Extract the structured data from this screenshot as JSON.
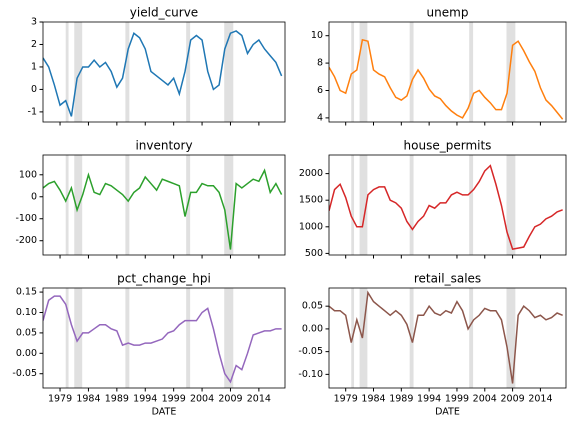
{
  "chart_data": [
    {
      "type": "line",
      "title": "yield_curve",
      "color": "#1f77b4",
      "x": [
        1976,
        1977,
        1978,
        1979,
        1980,
        1981,
        1982,
        1983,
        1984,
        1985,
        1986,
        1987,
        1988,
        1989,
        1990,
        1991,
        1992,
        1993,
        1994,
        1995,
        1996,
        1997,
        1998,
        1999,
        2000,
        2001,
        2002,
        2003,
        2004,
        2005,
        2006,
        2007,
        2008,
        2009,
        2010,
        2011,
        2012,
        2013,
        2014,
        2015,
        2016,
        2017,
        2018
      ],
      "values": [
        1.4,
        1.0,
        0.2,
        -0.7,
        -0.5,
        -1.2,
        0.5,
        1.0,
        1.0,
        1.3,
        1.0,
        1.2,
        0.8,
        0.1,
        0.5,
        1.8,
        2.5,
        2.3,
        1.8,
        0.8,
        0.6,
        0.4,
        0.2,
        0.5,
        -0.2,
        0.8,
        2.2,
        2.4,
        2.2,
        0.8,
        0.0,
        0.2,
        1.8,
        2.5,
        2.6,
        2.4,
        1.6,
        2.0,
        2.2,
        1.8,
        1.5,
        1.2,
        0.6
      ],
      "xlim": [
        1976,
        2018.6
      ],
      "ylim": [
        -1.45,
        3
      ],
      "yticks": [
        -1,
        0,
        1,
        2,
        3
      ],
      "shaded_regions": [
        [
          1980.0,
          1980.5
        ],
        [
          1981.5,
          1982.9
        ],
        [
          1990.5,
          1991.2
        ],
        [
          2001.2,
          2001.9
        ],
        [
          2007.9,
          2009.5
        ]
      ]
    },
    {
      "type": "line",
      "title": "unemp",
      "color": "#ff7f0e",
      "x": [
        1976,
        1977,
        1978,
        1979,
        1980,
        1981,
        1982,
        1983,
        1984,
        1985,
        1986,
        1987,
        1988,
        1989,
        1990,
        1991,
        1992,
        1993,
        1994,
        1995,
        1996,
        1997,
        1998,
        1999,
        2000,
        2001,
        2002,
        2003,
        2004,
        2005,
        2006,
        2007,
        2008,
        2009,
        2010,
        2011,
        2012,
        2013,
        2014,
        2015,
        2016,
        2017,
        2018
      ],
      "values": [
        7.7,
        7.0,
        6.0,
        5.8,
        7.2,
        7.5,
        9.7,
        9.6,
        7.5,
        7.2,
        7.0,
        6.2,
        5.5,
        5.3,
        5.6,
        6.8,
        7.5,
        6.9,
        6.1,
        5.6,
        5.4,
        4.9,
        4.5,
        4.2,
        4.0,
        4.7,
        5.8,
        6.0,
        5.5,
        5.1,
        4.6,
        4.6,
        5.8,
        9.3,
        9.6,
        8.9,
        8.1,
        7.4,
        6.2,
        5.3,
        4.9,
        4.4,
        3.9
      ],
      "xlim": [
        1976,
        2018.6
      ],
      "ylim": [
        3.7,
        11
      ],
      "yticks": [
        4,
        6,
        8,
        10
      ],
      "shaded_regions": [
        [
          1980.0,
          1980.5
        ],
        [
          1981.5,
          1982.9
        ],
        [
          1990.5,
          1991.2
        ],
        [
          2001.2,
          2001.9
        ],
        [
          2007.9,
          2009.5
        ]
      ]
    },
    {
      "type": "line",
      "title": "inventory",
      "color": "#2ca02c",
      "x": [
        1976,
        1977,
        1978,
        1979,
        1980,
        1981,
        1982,
        1983,
        1984,
        1985,
        1986,
        1987,
        1988,
        1989,
        1990,
        1991,
        1992,
        1993,
        1994,
        1995,
        1996,
        1997,
        1998,
        1999,
        2000,
        2001,
        2002,
        2003,
        2004,
        2005,
        2006,
        2007,
        2008,
        2009,
        2010,
        2011,
        2012,
        2013,
        2014,
        2015,
        2016,
        2017,
        2018
      ],
      "values": [
        40,
        60,
        70,
        30,
        -20,
        40,
        -60,
        10,
        100,
        20,
        10,
        60,
        50,
        30,
        10,
        -20,
        20,
        40,
        90,
        60,
        30,
        80,
        70,
        60,
        50,
        -90,
        20,
        20,
        60,
        50,
        50,
        20,
        -60,
        -240,
        60,
        40,
        60,
        80,
        70,
        120,
        20,
        60,
        10
      ],
      "xlim": [
        1976,
        2018.6
      ],
      "ylim": [
        -265,
        190
      ],
      "yticks": [
        -200,
        -100,
        0,
        100
      ],
      "shaded_regions": [
        [
          1980.0,
          1980.5
        ],
        [
          1981.5,
          1982.9
        ],
        [
          1990.5,
          1991.2
        ],
        [
          2001.2,
          2001.9
        ],
        [
          2007.9,
          2009.5
        ]
      ]
    },
    {
      "type": "line",
      "title": "house_permits",
      "color": "#d62728",
      "x": [
        1976,
        1977,
        1978,
        1979,
        1980,
        1981,
        1982,
        1983,
        1984,
        1985,
        1986,
        1987,
        1988,
        1989,
        1990,
        1991,
        1992,
        1993,
        1994,
        1995,
        1996,
        1997,
        1998,
        1999,
        2000,
        2001,
        2002,
        2003,
        2004,
        2005,
        2006,
        2007,
        2008,
        2009,
        2010,
        2011,
        2012,
        2013,
        2014,
        2015,
        2016,
        2017,
        2018
      ],
      "values": [
        1300,
        1700,
        1800,
        1550,
        1200,
        1000,
        1000,
        1600,
        1700,
        1750,
        1750,
        1500,
        1450,
        1350,
        1100,
        950,
        1100,
        1200,
        1400,
        1350,
        1450,
        1450,
        1600,
        1650,
        1600,
        1600,
        1700,
        1850,
        2050,
        2150,
        1800,
        1400,
        900,
        580,
        600,
        620,
        820,
        1000,
        1050,
        1150,
        1200,
        1280,
        1320
      ],
      "xlim": [
        1976,
        2018.6
      ],
      "ylim": [
        470,
        2350
      ],
      "yticks": [
        500,
        1000,
        1500,
        2000
      ],
      "shaded_regions": [
        [
          1980.0,
          1980.5
        ],
        [
          1981.5,
          1982.9
        ],
        [
          1990.5,
          1991.2
        ],
        [
          2001.2,
          2001.9
        ],
        [
          2007.9,
          2009.5
        ]
      ]
    },
    {
      "type": "line",
      "title": "pct_change_hpi",
      "color": "#9467bd",
      "x": [
        1976,
        1977,
        1978,
        1979,
        1980,
        1981,
        1982,
        1983,
        1984,
        1985,
        1986,
        1987,
        1988,
        1989,
        1990,
        1991,
        1992,
        1993,
        1994,
        1995,
        1996,
        1997,
        1998,
        1999,
        2000,
        2001,
        2002,
        2003,
        2004,
        2005,
        2006,
        2007,
        2008,
        2009,
        2010,
        2011,
        2012,
        2013,
        2014,
        2015,
        2016,
        2017,
        2018
      ],
      "values": [
        0.08,
        0.13,
        0.14,
        0.14,
        0.12,
        0.07,
        0.03,
        0.05,
        0.05,
        0.06,
        0.07,
        0.07,
        0.06,
        0.055,
        0.02,
        0.025,
        0.02,
        0.02,
        0.025,
        0.025,
        0.03,
        0.035,
        0.05,
        0.055,
        0.07,
        0.08,
        0.08,
        0.08,
        0.1,
        0.11,
        0.06,
        0.0,
        -0.05,
        -0.07,
        -0.03,
        -0.04,
        0.0,
        0.045,
        0.05,
        0.055,
        0.055,
        0.06,
        0.06
      ],
      "xlim": [
        1976,
        2018.6
      ],
      "ylim": [
        -0.085,
        0.16
      ],
      "yticks": [
        -0.05,
        {
          "value": 0,
          "label": "0.00"
        },
        0.05,
        {
          "value": 0.1,
          "label": "0.10"
        },
        0.15
      ],
      "xticks": [
        1979,
        1984,
        1989,
        1994,
        1999,
        2004,
        2009,
        2014
      ],
      "xlabel": "DATE",
      "shaded_regions": [
        [
          1980.0,
          1980.5
        ],
        [
          1981.5,
          1982.9
        ],
        [
          1990.5,
          1991.2
        ],
        [
          2001.2,
          2001.9
        ],
        [
          2007.9,
          2009.5
        ]
      ]
    },
    {
      "type": "line",
      "title": "retail_sales",
      "color": "#8c564b",
      "x": [
        1976,
        1977,
        1978,
        1979,
        1980,
        1981,
        1982,
        1983,
        1984,
        1985,
        1986,
        1987,
        1988,
        1989,
        1990,
        1991,
        1992,
        1993,
        1994,
        1995,
        1996,
        1997,
        1998,
        1999,
        2000,
        2001,
        2002,
        2003,
        2004,
        2005,
        2006,
        2007,
        2008,
        2009,
        2010,
        2011,
        2012,
        2013,
        2014,
        2015,
        2016,
        2017,
        2018
      ],
      "values": [
        0.05,
        0.04,
        0.04,
        0.03,
        -0.03,
        0.02,
        -0.02,
        0.08,
        0.06,
        0.05,
        0.04,
        0.03,
        0.04,
        0.03,
        0.01,
        -0.03,
        0.03,
        0.03,
        0.05,
        0.035,
        0.03,
        0.04,
        0.035,
        0.06,
        0.04,
        0.0,
        0.02,
        0.03,
        0.045,
        0.04,
        0.04,
        0.02,
        -0.04,
        -0.12,
        0.03,
        0.05,
        0.04,
        0.025,
        0.03,
        0.02,
        0.025,
        0.035,
        0.03
      ],
      "xlim": [
        1976,
        2018.6
      ],
      "ylim": [
        -0.13,
        0.09
      ],
      "yticks": [
        {
          "value": -0.1,
          "label": "-0.10"
        },
        -0.05,
        {
          "value": 0,
          "label": "0.00"
        },
        0.05
      ],
      "xticks": [
        1979,
        1984,
        1989,
        1994,
        1999,
        2004,
        2009,
        2014
      ],
      "xlabel": "DATE",
      "shaded_regions": [
        [
          1980.0,
          1980.5
        ],
        [
          1981.5,
          1982.9
        ],
        [
          1990.5,
          1991.2
        ],
        [
          2001.2,
          2001.9
        ],
        [
          2007.9,
          2009.5
        ]
      ]
    }
  ]
}
